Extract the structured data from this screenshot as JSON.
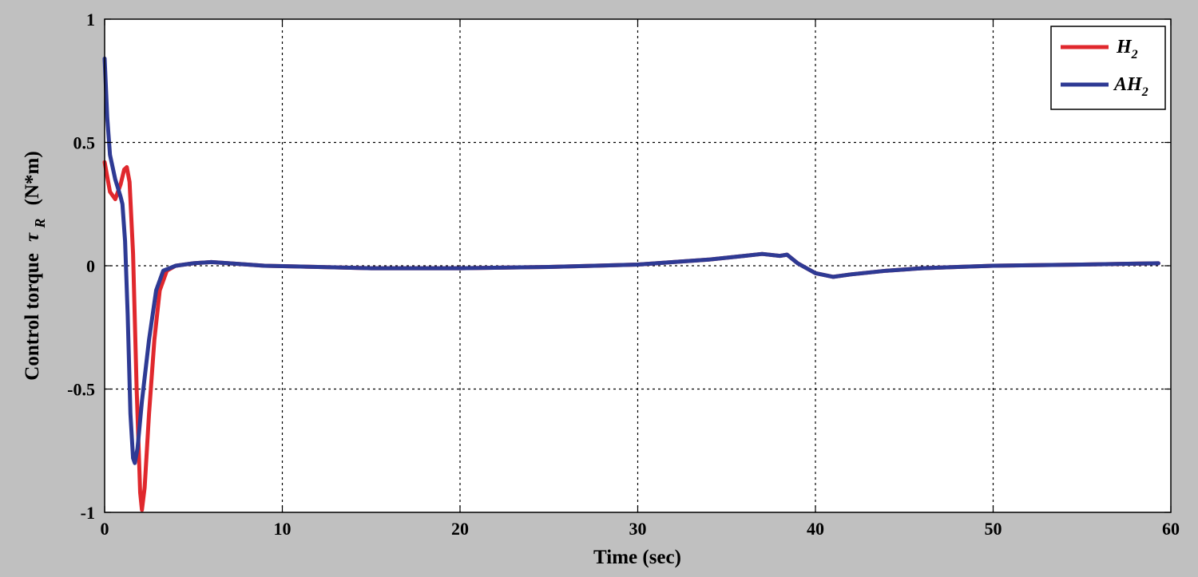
{
  "chart_data": {
    "type": "line",
    "xlabel": "Time (sec)",
    "ylabel": {
      "prefix": "Control torque",
      "symbol": "τ",
      "subscript": "R",
      "unit": "(N*m)"
    },
    "xlim": [
      0,
      60
    ],
    "ylim": [
      -1,
      1
    ],
    "xticks": [
      0,
      10,
      20,
      30,
      40,
      50,
      60
    ],
    "yticks": [
      -1,
      -0.5,
      0,
      0.5,
      1
    ],
    "xtick_labels": [
      "0",
      "10",
      "20",
      "30",
      "40",
      "50",
      "60"
    ],
    "ytick_labels": [
      "-1",
      "-0.5",
      "0",
      "0.5",
      "1"
    ],
    "grid": true,
    "legend_position": "top-right",
    "series": [
      {
        "name": "H",
        "name_subscript": "2",
        "color": "#e0282d",
        "points": [
          [
            0,
            0.42
          ],
          [
            0.3,
            0.3
          ],
          [
            0.6,
            0.27
          ],
          [
            0.9,
            0.33
          ],
          [
            1.1,
            0.39
          ],
          [
            1.25,
            0.4
          ],
          [
            1.4,
            0.34
          ],
          [
            1.6,
            0.05
          ],
          [
            1.8,
            -0.5
          ],
          [
            2.0,
            -0.92
          ],
          [
            2.1,
            -0.99
          ],
          [
            2.25,
            -0.9
          ],
          [
            2.5,
            -0.6
          ],
          [
            2.8,
            -0.3
          ],
          [
            3.1,
            -0.1
          ],
          [
            3.5,
            -0.02
          ],
          [
            4.0,
            0.0
          ],
          [
            5.0,
            0.01
          ],
          [
            6.0,
            0.015
          ],
          [
            7.0,
            0.01
          ],
          [
            9.0,
            0.0
          ],
          [
            12.0,
            -0.005
          ],
          [
            15.0,
            -0.01
          ],
          [
            20.0,
            -0.01
          ],
          [
            25.0,
            -0.005
          ],
          [
            30.0,
            0.005
          ],
          [
            32.0,
            0.015
          ],
          [
            34.0,
            0.025
          ],
          [
            36.0,
            0.04
          ],
          [
            37.0,
            0.048
          ],
          [
            38.0,
            0.04
          ],
          [
            38.4,
            0.045
          ],
          [
            39.0,
            0.01
          ],
          [
            40.0,
            -0.03
          ],
          [
            41.0,
            -0.045
          ],
          [
            42.0,
            -0.035
          ],
          [
            44.0,
            -0.02
          ],
          [
            46.0,
            -0.01
          ],
          [
            48.0,
            -0.005
          ],
          [
            50.0,
            0.0
          ],
          [
            55.0,
            0.005
          ],
          [
            59.3,
            0.01
          ]
        ]
      },
      {
        "name": "AH",
        "name_subscript": "2",
        "color": "#2e3a94",
        "points": [
          [
            0,
            0.84
          ],
          [
            0.15,
            0.6
          ],
          [
            0.3,
            0.45
          ],
          [
            0.6,
            0.35
          ],
          [
            0.9,
            0.28
          ],
          [
            1.0,
            0.25
          ],
          [
            1.15,
            0.1
          ],
          [
            1.3,
            -0.2
          ],
          [
            1.45,
            -0.6
          ],
          [
            1.6,
            -0.78
          ],
          [
            1.7,
            -0.8
          ],
          [
            1.85,
            -0.74
          ],
          [
            2.1,
            -0.55
          ],
          [
            2.5,
            -0.3
          ],
          [
            2.9,
            -0.1
          ],
          [
            3.3,
            -0.02
          ],
          [
            4.0,
            0.0
          ],
          [
            5.0,
            0.01
          ],
          [
            6.0,
            0.015
          ],
          [
            7.0,
            0.01
          ],
          [
            9.0,
            0.0
          ],
          [
            12.0,
            -0.005
          ],
          [
            15.0,
            -0.01
          ],
          [
            20.0,
            -0.01
          ],
          [
            25.0,
            -0.005
          ],
          [
            30.0,
            0.005
          ],
          [
            32.0,
            0.015
          ],
          [
            34.0,
            0.025
          ],
          [
            36.0,
            0.04
          ],
          [
            37.0,
            0.048
          ],
          [
            38.0,
            0.04
          ],
          [
            38.4,
            0.045
          ],
          [
            39.0,
            0.01
          ],
          [
            40.0,
            -0.03
          ],
          [
            41.0,
            -0.045
          ],
          [
            42.0,
            -0.035
          ],
          [
            44.0,
            -0.02
          ],
          [
            46.0,
            -0.01
          ],
          [
            48.0,
            -0.005
          ],
          [
            50.0,
            0.0
          ],
          [
            55.0,
            0.005
          ],
          [
            59.3,
            0.01
          ]
        ]
      }
    ]
  }
}
